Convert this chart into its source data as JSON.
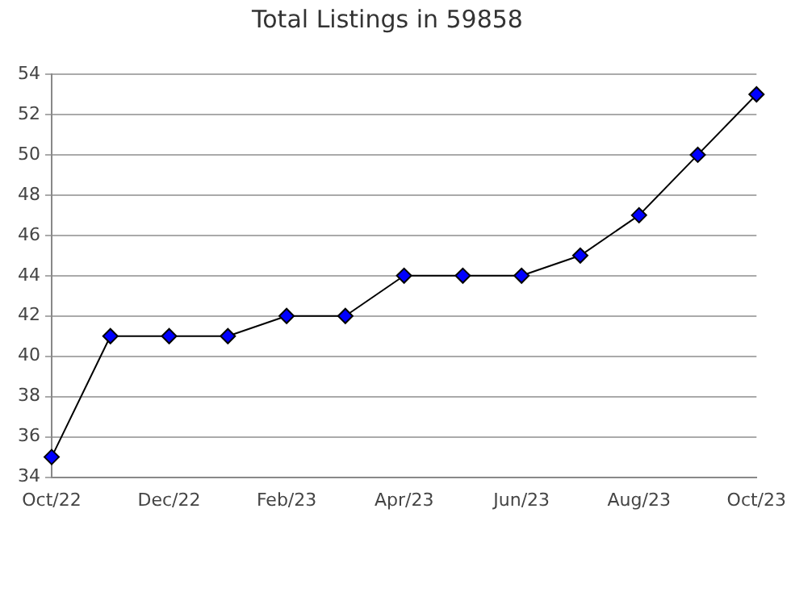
{
  "chart_data": {
    "type": "line",
    "title": "Total Listings in 59858",
    "categories": [
      "Oct/22",
      null,
      "Dec/22",
      null,
      "Feb/23",
      null,
      "Apr/23",
      null,
      "Jun/23",
      null,
      "Aug/23",
      null,
      "Oct/23"
    ],
    "series": [
      {
        "color": "#0000ff",
        "values": [
          35,
          41,
          41,
          41,
          42,
          42,
          44,
          44,
          44,
          45,
          47,
          50,
          53
        ]
      }
    ],
    "ylim": [
      34,
      54
    ],
    "yticks": [
      34,
      36,
      38,
      40,
      42,
      44,
      46,
      48,
      50,
      52,
      54
    ],
    "grid": "y",
    "legend": false,
    "marker": "diamond",
    "line_style": "solid"
  }
}
